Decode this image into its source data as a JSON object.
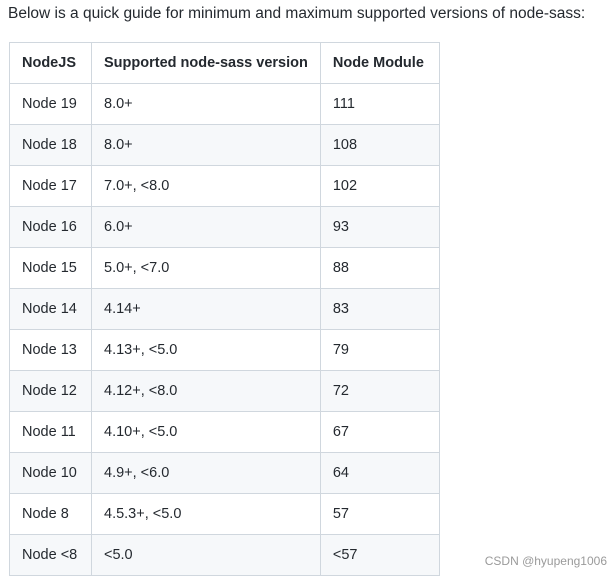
{
  "intro_text": "Below is a quick guide for minimum and maximum supported versions of node-sass:",
  "table": {
    "headers": [
      "NodeJS",
      "Supported node-sass version",
      "Node Module"
    ],
    "rows": [
      [
        "Node 19",
        "8.0+",
        "111"
      ],
      [
        "Node 18",
        "8.0+",
        "108"
      ],
      [
        "Node 17",
        "7.0+, <8.0",
        "102"
      ],
      [
        "Node 16",
        "6.0+",
        "93"
      ],
      [
        "Node 15",
        "5.0+, <7.0",
        "88"
      ],
      [
        "Node 14",
        "4.14+",
        "83"
      ],
      [
        "Node 13",
        "4.13+, <5.0",
        "79"
      ],
      [
        "Node 12",
        "4.12+, <8.0",
        "72"
      ],
      [
        "Node 11",
        "4.10+, <5.0",
        "67"
      ],
      [
        "Node 10",
        "4.9+, <6.0",
        "64"
      ],
      [
        "Node 8",
        "4.5.3+, <5.0",
        "57"
      ],
      [
        "Node <8",
        "<5.0",
        "<57"
      ]
    ]
  },
  "watermark": "CSDN @hyupeng1006"
}
